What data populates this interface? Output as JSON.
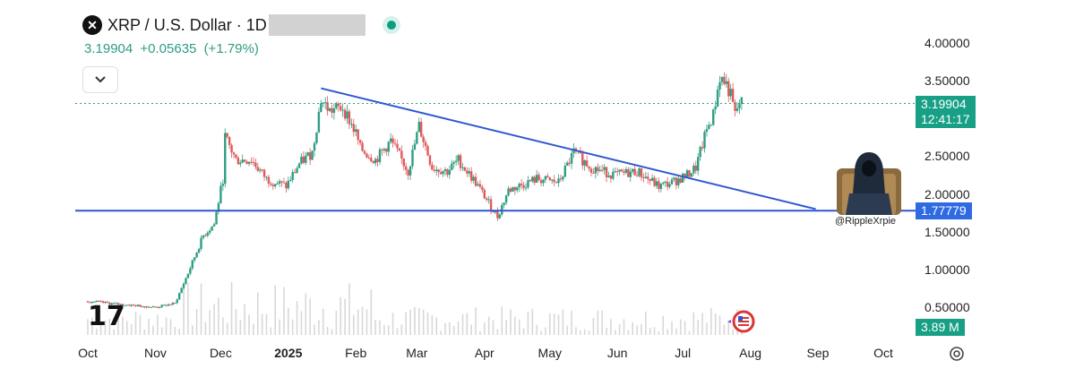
{
  "header": {
    "symbol_icon": "x-logo-icon",
    "title": "XRP / U.S. Dollar · 1D",
    "quote_price": "3.19904",
    "quote_change": "+0.05635",
    "quote_change_pct": "(+1.79%)",
    "quote_color": "#2f9c84"
  },
  "watermark": "17",
  "handle": "@RippleXrpie",
  "price_tag": {
    "value": "3.19904",
    "countdown": "12:41:17",
    "color": "#17a085"
  },
  "support_tag": {
    "value": "1.77779",
    "color": "#2f6ae3"
  },
  "volume_tag": {
    "value": "3.89 M",
    "color": "#17a085"
  },
  "icons": {
    "collapse": "chevron-down-icon",
    "settings": "gear-icon",
    "figure": "hooded-figure-icon",
    "flag": "us-flag-badge-icon"
  },
  "chart_data": {
    "type": "candlestick",
    "series_name": "XRP / U.S. Dollar",
    "interval": "1D",
    "ylim": [
      0.3,
      4.2
    ],
    "ytick_labels": [
      "4.00000",
      "3.50000",
      "3.00000",
      "2.50000",
      "2.00000",
      "1.50000",
      "1.00000",
      "0.50000"
    ],
    "yticks": [
      4.0,
      3.5,
      3.0,
      2.5,
      2.0,
      1.5,
      1.0,
      0.5
    ],
    "xtick_labels": [
      "Oct",
      "Nov",
      "Dec",
      "2025",
      "Feb",
      "Mar",
      "Apr",
      "May",
      "Jun",
      "Jul",
      "Aug",
      "Sep",
      "Oct"
    ],
    "xtick_dates": [
      "2024-10-01",
      "2024-11-01",
      "2024-12-01",
      "2025-01-01",
      "2025-02-01",
      "2025-03-01",
      "2025-04-01",
      "2025-05-01",
      "2025-06-01",
      "2025-07-01",
      "2025-08-01",
      "2025-09-01",
      "2025-10-01"
    ],
    "price_path": [
      [
        "2024-10-01",
        0.58
      ],
      [
        "2024-10-15",
        0.54
      ],
      [
        "2024-11-01",
        0.5
      ],
      [
        "2024-11-10",
        0.55
      ],
      [
        "2024-11-16",
        0.95
      ],
      [
        "2024-11-23",
        1.45
      ],
      [
        "2024-11-28",
        1.6
      ],
      [
        "2024-12-02",
        2.2
      ],
      [
        "2024-12-03",
        2.75
      ],
      [
        "2024-12-08",
        2.45
      ],
      [
        "2024-12-15",
        2.45
      ],
      [
        "2024-12-22",
        2.2
      ],
      [
        "2024-12-31",
        2.1
      ],
      [
        "2025-01-06",
        2.4
      ],
      [
        "2025-01-12",
        2.55
      ],
      [
        "2025-01-16",
        3.25
      ],
      [
        "2025-01-20",
        3.1
      ],
      [
        "2025-01-26",
        3.15
      ],
      [
        "2025-02-01",
        2.8
      ],
      [
        "2025-02-03",
        2.6
      ],
      [
        "2025-02-10",
        2.45
      ],
      [
        "2025-02-17",
        2.7
      ],
      [
        "2025-02-25",
        2.3
      ],
      [
        "2025-03-02",
        2.9
      ],
      [
        "2025-03-08",
        2.35
      ],
      [
        "2025-03-15",
        2.3
      ],
      [
        "2025-03-20",
        2.45
      ],
      [
        "2025-03-28",
        2.15
      ],
      [
        "2025-04-07",
        1.7
      ],
      [
        "2025-04-12",
        2.05
      ],
      [
        "2025-04-25",
        2.2
      ],
      [
        "2025-05-05",
        2.15
      ],
      [
        "2025-05-12",
        2.55
      ],
      [
        "2025-05-20",
        2.35
      ],
      [
        "2025-05-31",
        2.25
      ],
      [
        "2025-06-10",
        2.3
      ],
      [
        "2025-06-20",
        2.1
      ],
      [
        "2025-06-26",
        2.15
      ],
      [
        "2025-07-03",
        2.25
      ],
      [
        "2025-07-07",
        2.35
      ],
      [
        "2025-07-12",
        2.85
      ],
      [
        "2025-07-15",
        3.05
      ],
      [
        "2025-07-18",
        3.55
      ],
      [
        "2025-07-21",
        3.45
      ],
      [
        "2025-07-23",
        3.3
      ],
      [
        "2025-07-25",
        3.05
      ],
      [
        "2025-07-27",
        3.2
      ]
    ],
    "trendlines": [
      {
        "name": "descending-resistance",
        "from": [
          "2025-01-16",
          3.4
        ],
        "to": [
          "2025-08-31",
          1.8
        ]
      },
      {
        "name": "horizontal-support",
        "from": [
          "2024-10-01",
          1.77779
        ],
        "to": [
          "2025-09-25",
          1.77779
        ]
      }
    ],
    "current_price_line": 3.19904,
    "up_color": "#2d9e83",
    "down_color": "#e05a5a",
    "trend_color": "#2f57d0",
    "volume_color": "#c8c8c8",
    "grid": false,
    "legend": "none"
  }
}
